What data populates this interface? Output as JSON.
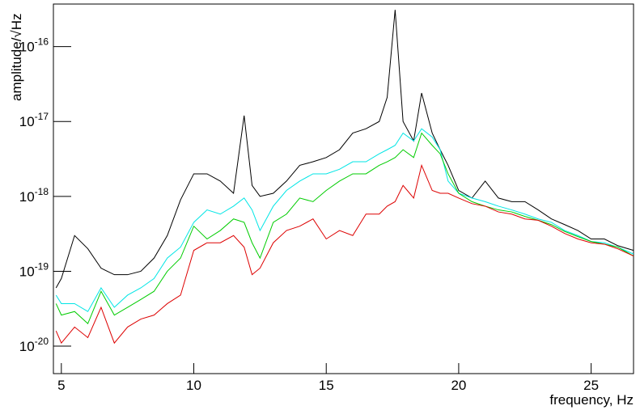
{
  "chart_data": {
    "type": "line",
    "x_label": "frequency, Hz",
    "y_label": "amplitude/√Hz",
    "log_y": true,
    "grid": false,
    "x": [
      4.8,
      5.0,
      5.5,
      6.0,
      6.5,
      7.0,
      7.5,
      8.0,
      8.5,
      9.0,
      9.5,
      10.0,
      10.5,
      11.0,
      11.5,
      11.9,
      12.2,
      12.5,
      13.0,
      13.5,
      14.0,
      14.5,
      15.0,
      15.5,
      16.0,
      16.5,
      17.0,
      17.3,
      17.6,
      17.9,
      18.3,
      18.6,
      19.0,
      19.3,
      19.6,
      20.0,
      20.5,
      21.0,
      21.5,
      22.0,
      22.5,
      23.0,
      23.5,
      24.0,
      24.5,
      25.0,
      25.5,
      26.0,
      26.6
    ],
    "series": [
      {
        "color": "#000000",
        "values": [
          6e-20,
          8e-20,
          3e-19,
          2e-19,
          1.1e-19,
          9e-20,
          9e-20,
          1e-19,
          1.5e-19,
          3e-19,
          9e-19,
          2e-18,
          2e-18,
          1.6e-18,
          1.1e-18,
          1.2e-17,
          1.4e-18,
          1e-18,
          1.1e-18,
          1.6e-18,
          2.6e-18,
          2.9e-18,
          3.3e-18,
          4.2e-18,
          7e-18,
          8e-18,
          1e-17,
          2.1e-17,
          3.1e-16,
          1e-17,
          5.5e-18,
          2.4e-17,
          7e-18,
          4.2e-18,
          2.6e-18,
          1.2e-18,
          9.5e-19,
          1.6e-18,
          9.5e-19,
          8.5e-19,
          8.5e-19,
          6.6e-19,
          5e-19,
          4.2e-19,
          3.5e-19,
          2.7e-19,
          2.7e-19,
          2.2e-19,
          1.9e-19
        ]
      },
      {
        "color": "#00e5e5",
        "values": [
          4.8e-20,
          3.7e-20,
          3.7e-20,
          2.9e-20,
          6e-20,
          3.3e-20,
          4.8e-20,
          6e-20,
          8e-20,
          1.5e-19,
          2.1e-19,
          4.5e-19,
          6.6e-19,
          5.8e-19,
          7.4e-19,
          9.5e-19,
          6.6e-19,
          3.5e-19,
          7.4e-19,
          1.2e-18,
          1.6e-18,
          2e-18,
          2e-18,
          2.3e-18,
          2.9e-18,
          2.9e-18,
          3.7e-18,
          4.2e-18,
          4.8e-18,
          7e-18,
          5.5e-18,
          8e-18,
          6.2e-18,
          4.2e-18,
          1.6e-18,
          1.1e-18,
          9.5e-19,
          8.5e-19,
          7.4e-19,
          6.6e-19,
          5.8e-19,
          5e-19,
          4.5e-19,
          3.5e-19,
          3e-19,
          2.5e-19,
          2.4e-19,
          2.1e-19,
          1.7e-19
        ]
      },
      {
        "color": "#00cc00",
        "values": [
          3.7e-20,
          2.6e-20,
          2.9e-20,
          2e-20,
          5.4e-20,
          2.6e-20,
          3.3e-20,
          4.2e-20,
          5.4e-20,
          1e-19,
          1.5e-19,
          4e-19,
          2.7e-19,
          3.5e-19,
          5e-19,
          4.5e-19,
          2.4e-19,
          1.5e-19,
          4.5e-19,
          5.8e-19,
          9.5e-19,
          8.5e-19,
          1.2e-18,
          1.6e-18,
          2e-18,
          2e-18,
          2.6e-18,
          2.9e-18,
          3.3e-18,
          4.2e-18,
          3.3e-18,
          7e-18,
          4.8e-18,
          3.7e-18,
          2e-18,
          1.1e-18,
          8.5e-19,
          7.4e-19,
          6.6e-19,
          6.2e-19,
          5.4e-19,
          4.8e-19,
          4.2e-19,
          3.4e-19,
          2.9e-19,
          2.5e-19,
          2.3e-19,
          2.1e-19,
          1.6e-19
        ]
      },
      {
        "color": "#dd0000",
        "values": [
          1.6e-20,
          1.1e-20,
          1.8e-20,
          1.3e-20,
          3.3e-20,
          1.1e-20,
          1.8e-20,
          2.3e-20,
          2.6e-20,
          3.7e-20,
          4.8e-20,
          1.9e-19,
          2.4e-19,
          2.4e-19,
          3e-19,
          2.1e-19,
          9e-20,
          1.1e-19,
          2.4e-19,
          3.5e-19,
          4e-19,
          5e-19,
          2.7e-19,
          3.5e-19,
          3e-19,
          5.8e-19,
          5.8e-19,
          7.4e-19,
          8.5e-19,
          1.4e-18,
          9.5e-19,
          2.6e-18,
          1.2e-18,
          1.1e-18,
          1.1e-18,
          9.5e-19,
          8e-19,
          7.4e-19,
          6.2e-19,
          5.8e-19,
          5e-19,
          4.8e-19,
          4e-19,
          3.2e-19,
          2.7e-19,
          2.4e-19,
          2.3e-19,
          2e-19,
          1.6e-19
        ]
      }
    ],
    "xlim": [
      4.7,
      26.6
    ],
    "ylim": [
      4.3e-21,
      3.7e-16
    ],
    "xticks": [
      5,
      10,
      15,
      20,
      25
    ],
    "yticks": [
      {
        "value": 1e-20,
        "label": "10^-20"
      },
      {
        "value": 1e-19,
        "label": "10^-19"
      },
      {
        "value": 1e-18,
        "label": "10^-18"
      },
      {
        "value": 1e-17,
        "label": "10^-17"
      },
      {
        "value": 1e-16,
        "label": "10^-16"
      }
    ]
  }
}
